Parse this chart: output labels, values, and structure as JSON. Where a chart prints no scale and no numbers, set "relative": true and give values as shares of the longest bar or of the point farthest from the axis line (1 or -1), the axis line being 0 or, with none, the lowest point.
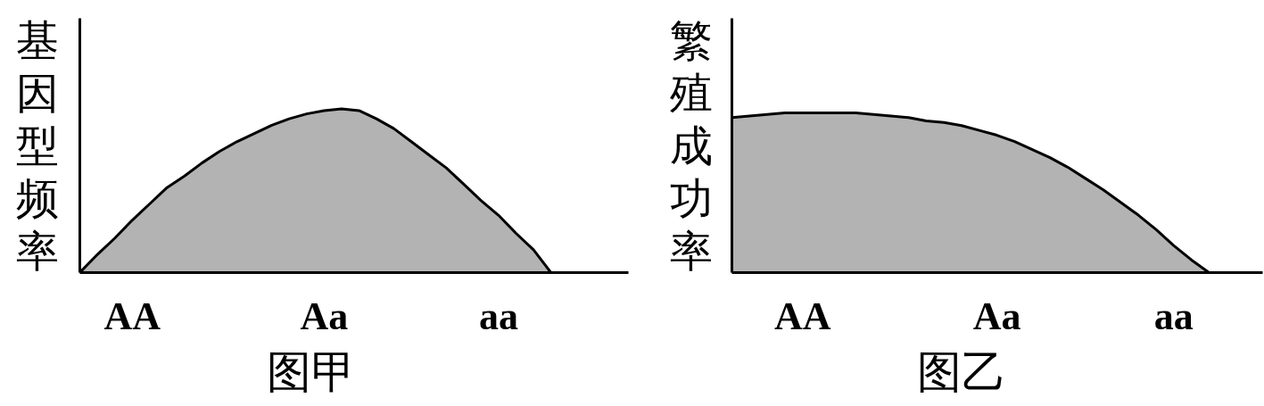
{
  "chart_data": [
    {
      "type": "area",
      "title": "图甲",
      "ylabel": "基因型频率",
      "relative": true,
      "color": "#b3b3b3",
      "categories": [
        null,
        null,
        null,
        "AA",
        null,
        null,
        null,
        null,
        null,
        null,
        null,
        null,
        null,
        null,
        "Aa",
        null,
        null,
        null,
        null,
        null,
        null,
        null,
        null,
        null,
        "aa",
        null,
        null,
        null
      ],
      "values": [
        0,
        0.11,
        0.21,
        0.32,
        0.42,
        0.52,
        0.59,
        0.67,
        0.74,
        0.8,
        0.85,
        0.9,
        0.94,
        0.97,
        0.99,
        1,
        0.99,
        0.94,
        0.88,
        0.8,
        0.72,
        0.64,
        0.54,
        0.44,
        0.35,
        0.24,
        0.14,
        0
      ]
    },
    {
      "type": "area",
      "title": "图乙",
      "ylabel": "繁殖成功率",
      "relative": true,
      "color": "#b3b3b3",
      "categories": [
        null,
        null,
        null,
        null,
        "AA",
        null,
        null,
        null,
        null,
        null,
        null,
        null,
        null,
        null,
        null,
        "Aa",
        null,
        null,
        null,
        null,
        null,
        null,
        null,
        null,
        null,
        "aa",
        null,
        null
      ],
      "values": [
        0.97,
        0.98,
        0.99,
        1,
        1,
        1,
        1,
        1,
        0.99,
        0.98,
        0.97,
        0.95,
        0.94,
        0.92,
        0.89,
        0.86,
        0.82,
        0.77,
        0.72,
        0.66,
        0.59,
        0.52,
        0.44,
        0.36,
        0.27,
        0.17,
        0.08,
        0
      ]
    }
  ]
}
